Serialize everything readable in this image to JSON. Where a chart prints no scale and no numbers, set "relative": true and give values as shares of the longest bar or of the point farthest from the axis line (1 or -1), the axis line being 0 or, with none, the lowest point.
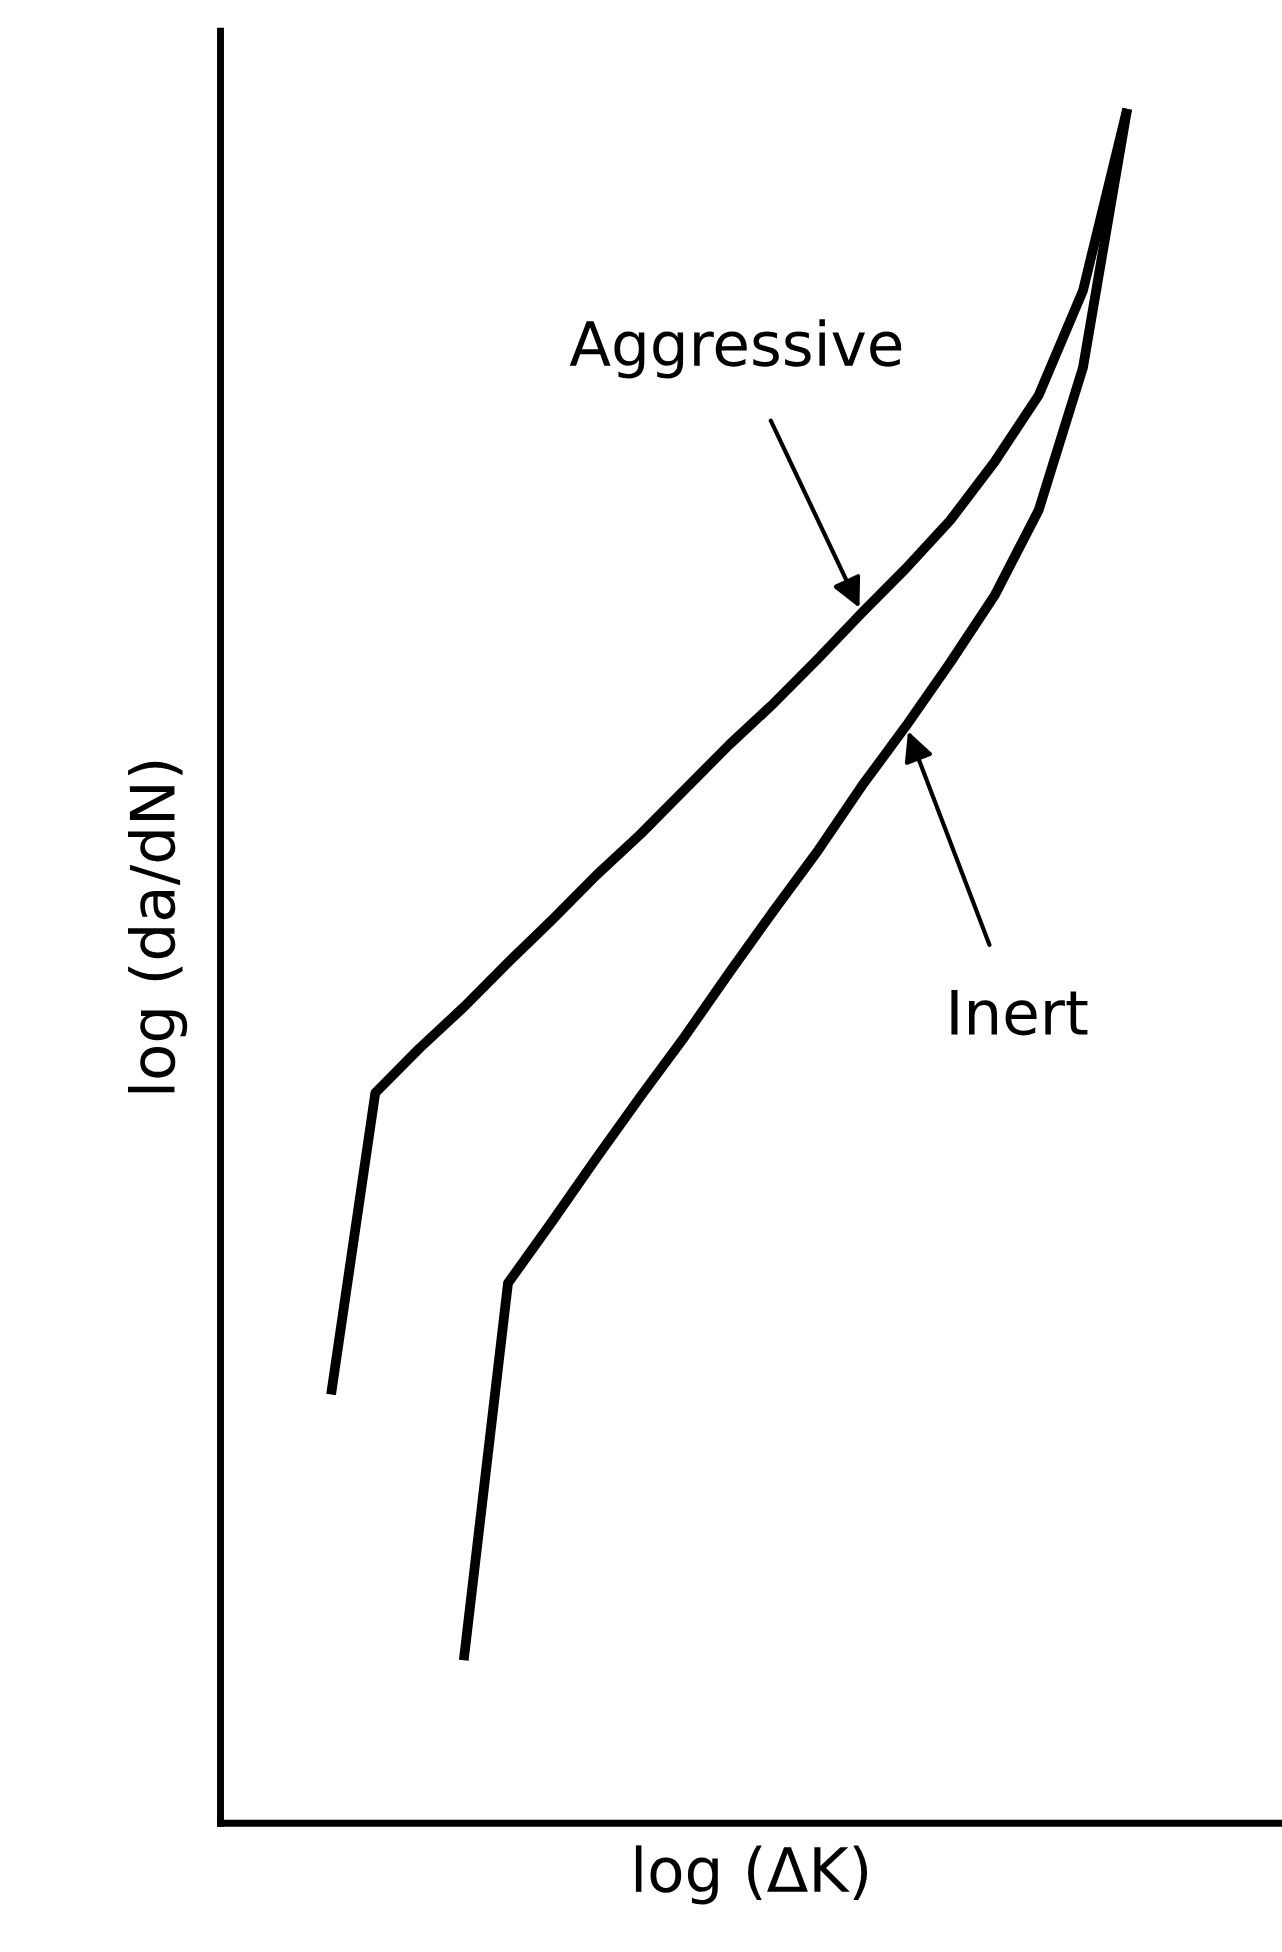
{
  "chart_data": {
    "type": "line",
    "relative": true,
    "xlabel": "log (ΔK)",
    "ylabel": "log (da/dN)",
    "tick_labels": false,
    "legend": false,
    "marker": "none",
    "line_style": "solid",
    "categories": [
      null,
      null,
      null,
      null,
      null,
      null,
      null,
      null,
      null,
      null,
      null,
      null,
      null,
      null,
      null,
      null,
      null,
      null,
      null,
      null,
      null,
      null,
      null,
      null
    ],
    "series": [
      {
        "color": "#000000",
        "values": [
          null,
          null,
          0.25,
          0.426,
          0.452,
          0.476,
          0.502,
          0.527,
          0.553,
          0.577,
          0.603,
          0.629,
          0.653,
          0.679,
          0.706,
          0.732,
          0.76,
          0.794,
          0.833,
          0.894,
          1,
          null,
          null,
          null
        ]
      },
      {
        "color": "#000000",
        "values": [
          null,
          null,
          null,
          null,
          null,
          0.095,
          0.315,
          0.351,
          0.388,
          0.424,
          0.459,
          0.496,
          0.532,
          0.567,
          0.605,
          0.64,
          0.677,
          0.716,
          0.766,
          0.849,
          1,
          null,
          null,
          null
        ]
      }
    ],
    "annotations": [
      "Aggressive",
      "Inert"
    ]
  }
}
